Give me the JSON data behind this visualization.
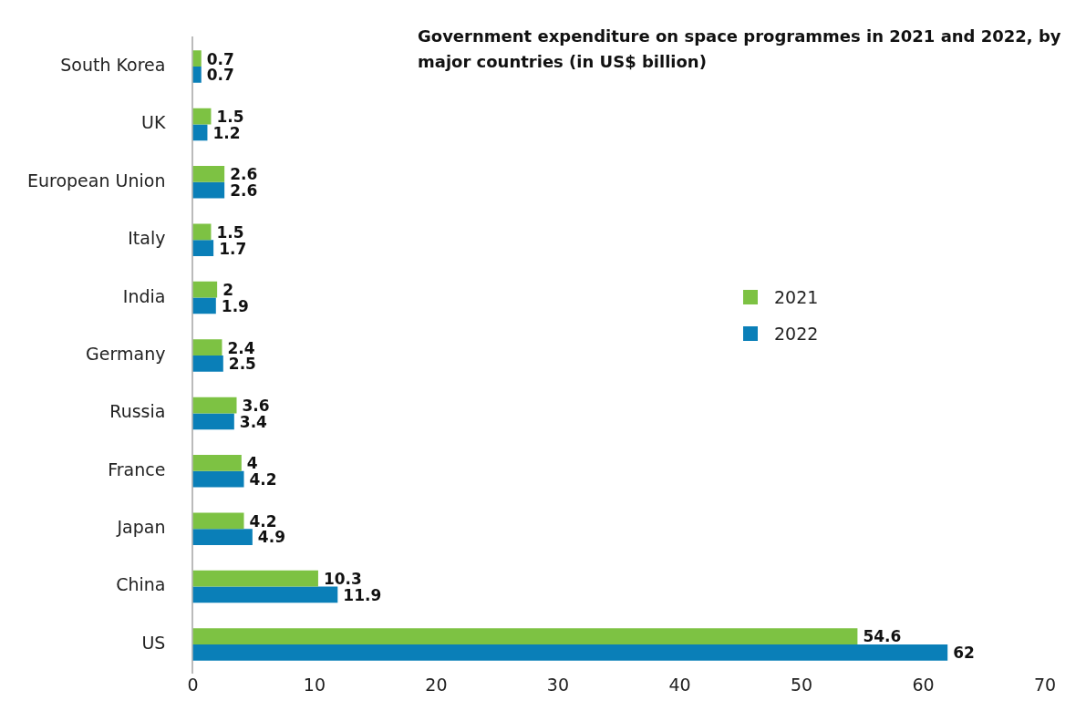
{
  "chart_data": {
    "type": "bar",
    "orientation": "horizontal",
    "title": "Government expenditure on space programmes in 2021 and 2022, by major countries (in US$ billion)",
    "categories": [
      "South Korea",
      "UK",
      "European Union",
      "Italy",
      "India",
      "Germany",
      "Russia",
      "France",
      "Japan",
      "China",
      "US"
    ],
    "series": [
      {
        "name": "2021",
        "color": "#7dc243",
        "values": [
          0.7,
          1.5,
          2.6,
          1.5,
          2,
          2.4,
          3.6,
          4,
          4.2,
          10.3,
          54.6
        ]
      },
      {
        "name": "2022",
        "color": "#0a7fb8",
        "values": [
          0.7,
          1.2,
          2.6,
          1.7,
          1.9,
          2.5,
          3.4,
          4.2,
          4.9,
          11.9,
          62
        ]
      }
    ],
    "xlim": [
      0,
      70
    ],
    "xticks": [
      0,
      10,
      20,
      30,
      40,
      50,
      60,
      70
    ],
    "grid": false,
    "legend": "right",
    "data_labels": true
  }
}
